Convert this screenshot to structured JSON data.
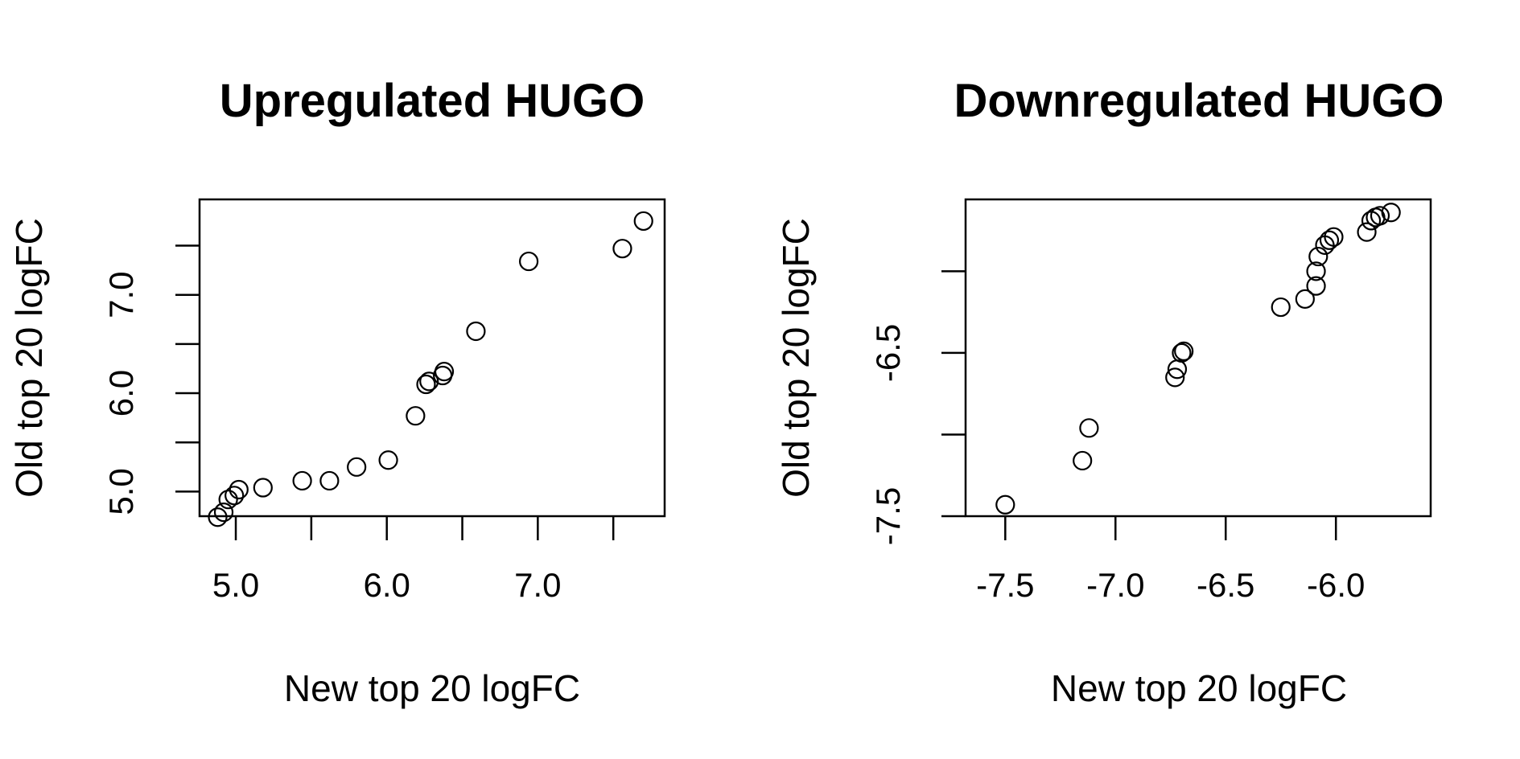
{
  "chart_data": [
    {
      "type": "scatter",
      "title": "Upregulated HUGO",
      "xlabel": "New top 20 logFC",
      "ylabel": "Old top 20 logFC",
      "xlim": [
        4.76,
        7.84
      ],
      "ylim": [
        4.75,
        7.97
      ],
      "xticks": [
        5.0,
        5.5,
        6.0,
        6.5,
        7.0,
        7.5
      ],
      "xtick_labels": [
        "5.0",
        "",
        "6.0",
        "",
        "7.0",
        ""
      ],
      "yticks": [
        5.0,
        5.5,
        6.0,
        6.5,
        7.0,
        7.5
      ],
      "ytick_labels": [
        "5.0",
        "",
        "6.0",
        "",
        "7.0",
        ""
      ],
      "grid": false,
      "points": [
        {
          "x": 4.88,
          "y": 4.74
        },
        {
          "x": 4.92,
          "y": 4.79
        },
        {
          "x": 4.95,
          "y": 4.92
        },
        {
          "x": 4.99,
          "y": 4.96
        },
        {
          "x": 5.02,
          "y": 5.02
        },
        {
          "x": 5.18,
          "y": 5.04
        },
        {
          "x": 5.44,
          "y": 5.11
        },
        {
          "x": 5.62,
          "y": 5.11
        },
        {
          "x": 5.8,
          "y": 5.25
        },
        {
          "x": 6.01,
          "y": 5.32
        },
        {
          "x": 6.19,
          "y": 5.77
        },
        {
          "x": 6.26,
          "y": 6.09
        },
        {
          "x": 6.28,
          "y": 6.12
        },
        {
          "x": 6.37,
          "y": 6.18
        },
        {
          "x": 6.38,
          "y": 6.22
        },
        {
          "x": 6.59,
          "y": 6.63
        },
        {
          "x": 6.94,
          "y": 7.34
        },
        {
          "x": 7.56,
          "y": 7.47
        },
        {
          "x": 7.7,
          "y": 7.75
        }
      ]
    },
    {
      "type": "scatter",
      "title": "Downregulated HUGO",
      "xlabel": "New top 20 logFC",
      "ylabel": "Old top 20 logFC",
      "xlim": [
        -7.68,
        -5.57
      ],
      "ylim": [
        -7.5,
        -5.56
      ],
      "xticks": [
        -7.5,
        -7.0,
        -6.5,
        -6.0
      ],
      "xtick_labels": [
        "-7.5",
        "-7.0",
        "-6.5",
        "-6.0"
      ],
      "yticks": [
        -7.5,
        -7.0,
        -6.5,
        -6.0
      ],
      "ytick_labels": [
        "-7.5",
        "",
        "-6.5",
        ""
      ],
      "grid": false,
      "points": [
        {
          "x": -7.5,
          "y": -7.43
        },
        {
          "x": -7.15,
          "y": -7.16
        },
        {
          "x": -7.12,
          "y": -6.96
        },
        {
          "x": -6.73,
          "y": -6.65
        },
        {
          "x": -6.72,
          "y": -6.6
        },
        {
          "x": -6.7,
          "y": -6.5
        },
        {
          "x": -6.69,
          "y": -6.49
        },
        {
          "x": -6.25,
          "y": -6.22
        },
        {
          "x": -6.14,
          "y": -6.17
        },
        {
          "x": -6.09,
          "y": -6.09
        },
        {
          "x": -6.09,
          "y": -6.0
        },
        {
          "x": -6.08,
          "y": -5.91
        },
        {
          "x": -6.05,
          "y": -5.84
        },
        {
          "x": -6.03,
          "y": -5.81
        },
        {
          "x": -6.01,
          "y": -5.79
        },
        {
          "x": -5.86,
          "y": -5.76
        },
        {
          "x": -5.84,
          "y": -5.69
        },
        {
          "x": -5.82,
          "y": -5.67
        },
        {
          "x": -5.8,
          "y": -5.66
        },
        {
          "x": -5.75,
          "y": -5.64
        }
      ]
    }
  ]
}
